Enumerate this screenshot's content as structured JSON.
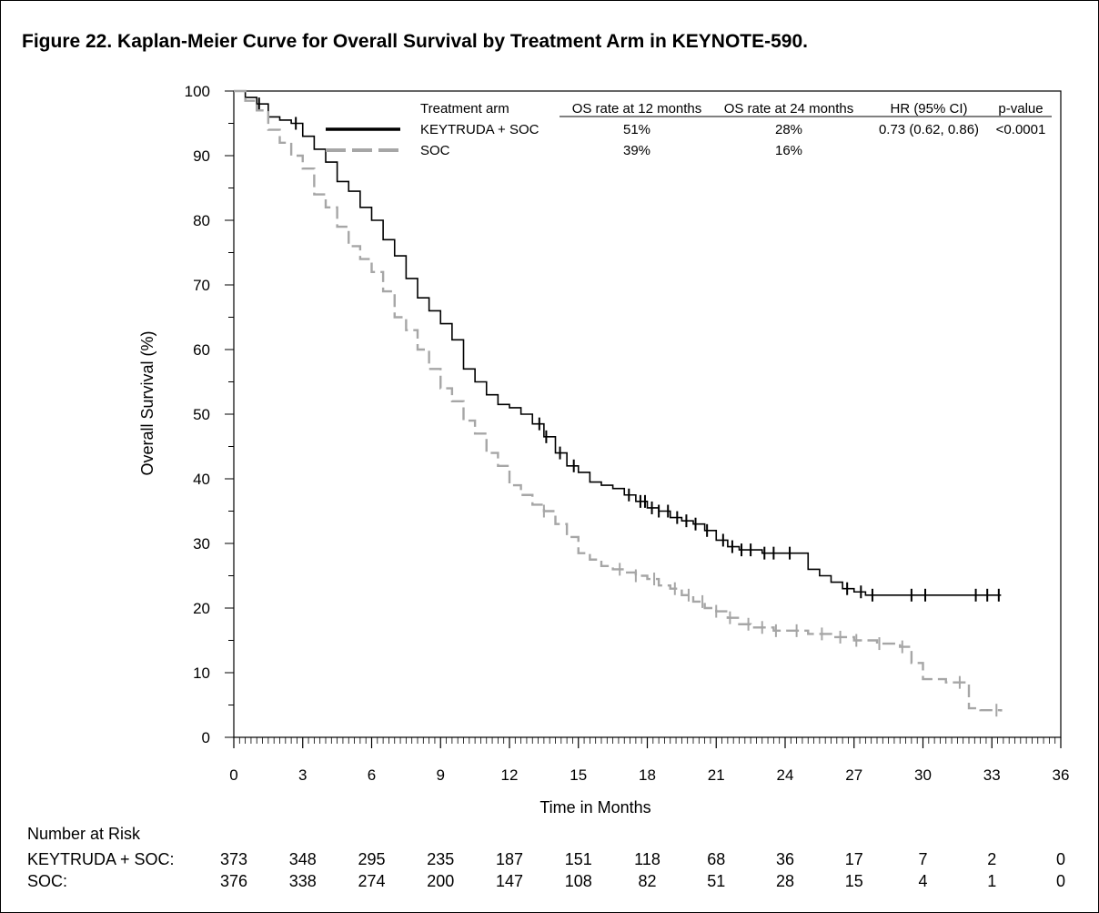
{
  "figure": {
    "title": "Figure 22. Kaplan-Meier Curve for Overall Survival by Treatment Arm in KEYNOTE-590."
  },
  "chart_data": {
    "type": "line",
    "subtype": "kaplan-meier",
    "xlabel": "Time in Months",
    "ylabel": "Overall Survival (%)",
    "xlim": [
      0,
      36
    ],
    "ylim": [
      0,
      100
    ],
    "xticks": [
      0,
      3,
      6,
      9,
      12,
      15,
      18,
      21,
      24,
      27,
      30,
      33,
      36
    ],
    "yticks": [
      0,
      10,
      20,
      30,
      40,
      50,
      60,
      70,
      80,
      90,
      100
    ],
    "legend": {
      "headers": [
        "Treatment arm",
        "OS rate at 12 months",
        "OS rate at 24 months",
        "HR (95% CI)",
        "p-value"
      ],
      "rows": [
        {
          "arm": "KEYTRUDA + SOC",
          "os12": "51%",
          "os24": "28%",
          "hr": "0.73 (0.62, 0.86)",
          "p": "<0.0001",
          "style": "solid"
        },
        {
          "arm": "SOC",
          "os12": "39%",
          "os24": "16%",
          "hr": "",
          "p": "",
          "style": "dashed"
        }
      ]
    },
    "series": [
      {
        "name": "KEYTRUDA + SOC",
        "color": "#000000",
        "dash": "solid",
        "x": [
          0,
          0.5,
          1,
          1.5,
          2,
          2.5,
          3,
          3.5,
          4,
          4.5,
          5,
          5.5,
          6,
          6.5,
          7,
          7.5,
          8,
          8.5,
          9,
          9.5,
          10,
          10.5,
          11,
          11.5,
          12,
          12.5,
          13,
          13.5,
          14,
          14.5,
          15,
          15.5,
          16,
          16.5,
          17,
          17.5,
          18,
          18.5,
          19,
          19.5,
          20,
          20.5,
          21,
          21.5,
          22,
          22.5,
          23,
          23.5,
          24,
          24.5,
          25,
          25.5,
          26,
          26.5,
          27,
          27.5,
          28,
          30,
          33.4
        ],
        "y": [
          100,
          99,
          98,
          96,
          95.5,
          95,
          93,
          91,
          89,
          86,
          84.5,
          82,
          80,
          77,
          74.5,
          71,
          68,
          66,
          64,
          61.5,
          57,
          55,
          53,
          51.5,
          51,
          50,
          48.5,
          46.5,
          44,
          42,
          41,
          39.5,
          39,
          38.5,
          37.5,
          36.5,
          35.5,
          35,
          34,
          33.5,
          33,
          32,
          30.5,
          29.5,
          29,
          29,
          28.5,
          28.5,
          28.5,
          28.5,
          26,
          25,
          24,
          23,
          22.5,
          22,
          22,
          22,
          22
        ],
        "censor_x": [
          1.1,
          2.7,
          13.3,
          13.6,
          14.2,
          14.8,
          17.2,
          17.7,
          17.9,
          18.2,
          18.5,
          18.9,
          19.3,
          19.7,
          20.1,
          20.6,
          21.3,
          21.7,
          22.1,
          22.5,
          23.1,
          23.5,
          24.2,
          26.7,
          27.3,
          27.8,
          29.5,
          30.1,
          32.3,
          32.8,
          33.3
        ]
      },
      {
        "name": "SOC",
        "color": "#a6a6a6",
        "dash": "dashed",
        "x": [
          0,
          0.5,
          1,
          1.5,
          2,
          2.5,
          3,
          3.5,
          4,
          4.5,
          5,
          5.5,
          6,
          6.5,
          7,
          7.5,
          8,
          8.5,
          9,
          9.5,
          10,
          10.5,
          11,
          11.5,
          12,
          12.5,
          13,
          13.5,
          14,
          14.5,
          15,
          15.5,
          16,
          16.5,
          17,
          17.5,
          18,
          18.5,
          19,
          19.5,
          20,
          20.5,
          21,
          21.5,
          22,
          22.5,
          23,
          23.5,
          24,
          25,
          26,
          27,
          28,
          29,
          29.5,
          30,
          31,
          32,
          32.5,
          33.4
        ],
        "y": [
          100,
          98.5,
          97,
          94,
          92,
          90,
          88,
          84,
          82,
          79,
          76,
          74,
          72,
          69,
          65,
          63,
          60,
          57,
          54,
          52,
          49,
          47,
          44,
          42,
          39,
          37.5,
          36,
          35,
          33,
          31,
          28.5,
          27.5,
          26.5,
          26,
          25.5,
          25,
          24.5,
          23.5,
          23,
          22,
          21,
          20,
          19.5,
          18.5,
          17.5,
          17,
          17,
          16.5,
          16.5,
          16,
          15.5,
          15,
          14.5,
          14,
          11.5,
          9,
          8.5,
          4.5,
          4.2,
          4
        ],
        "censor_x": [
          13.5,
          16.8,
          17.5,
          18.3,
          19.2,
          19.8,
          20.4,
          21.0,
          21.6,
          22.4,
          23.0,
          23.6,
          24.5,
          25.6,
          26.4,
          27.1,
          28.1,
          29.1,
          31.6,
          33.2
        ]
      }
    ],
    "number_at_risk": {
      "title": "Number at Risk",
      "times": [
        0,
        3,
        6,
        9,
        12,
        15,
        18,
        21,
        24,
        27,
        30,
        33,
        36
      ],
      "rows": [
        {
          "label": "KEYTRUDA + SOC:",
          "values": [
            "373",
            "348",
            "295",
            "235",
            "187",
            "151",
            "118",
            "68",
            "36",
            "17",
            "7",
            "2",
            "0"
          ]
        },
        {
          "label": "SOC:",
          "values": [
            "376",
            "338",
            "274",
            "200",
            "147",
            "108",
            "82",
            "51",
            "28",
            "15",
            "4",
            "1",
            "0"
          ]
        }
      ]
    }
  }
}
